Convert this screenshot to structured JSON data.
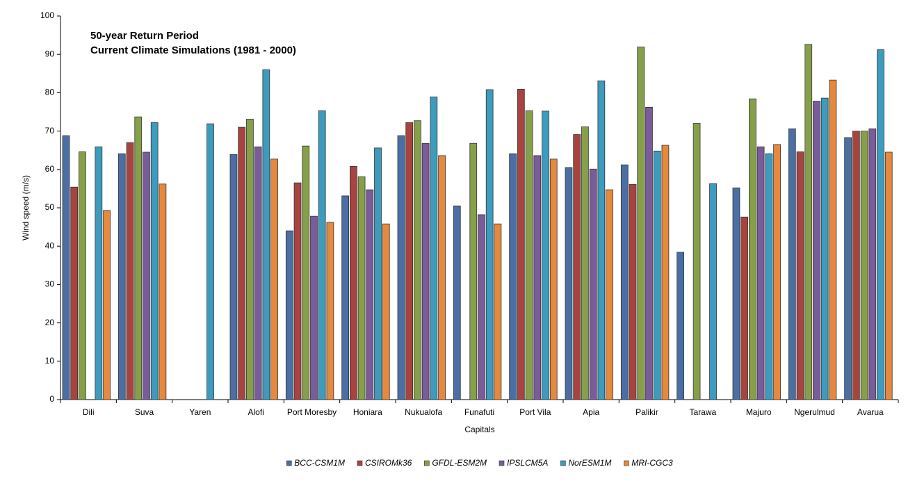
{
  "chart_data": {
    "type": "bar",
    "title": [
      "50-year Return Period",
      "Current Climate Simulations (1981 - 2000)"
    ],
    "x_label": "Capitals",
    "y_label": "Wind speed (m/s)",
    "categories": [
      "Dili",
      "Suva",
      "Yaren",
      "Alofi",
      "Port Moresby",
      "Honiara",
      "Nukualofa",
      "Funafuti",
      "Port Vila",
      "Apia",
      "Palikir",
      "Tarawa",
      "Majuro",
      "Ngerulmud",
      "Avarua"
    ],
    "series": [
      {
        "name": "BCC-CSM1M",
        "color": "#4a6fa5",
        "values": [
          68.8,
          64.1,
          null,
          63.9,
          44.0,
          53.1,
          68.8,
          50.5,
          64.1,
          60.5,
          61.2,
          38.4,
          55.2,
          70.6,
          68.3
        ]
      },
      {
        "name": "CSIROMk36",
        "color": "#a84440",
        "values": [
          55.4,
          67.0,
          null,
          71.0,
          56.5,
          60.8,
          72.2,
          null,
          80.9,
          69.1,
          56.1,
          null,
          47.6,
          64.6,
          70.0
        ]
      },
      {
        "name": "GFDL-ESM2M",
        "color": "#86a04a",
        "values": [
          64.6,
          73.7,
          null,
          73.1,
          66.1,
          58.1,
          72.7,
          66.8,
          75.3,
          71.1,
          91.9,
          72.0,
          78.4,
          92.6,
          70.0
        ]
      },
      {
        "name": "IPSLCM5A",
        "color": "#7a5c9b",
        "values": [
          null,
          64.5,
          null,
          65.9,
          47.8,
          54.7,
          66.8,
          48.2,
          63.6,
          60.1,
          76.2,
          null,
          65.9,
          77.8,
          70.6
        ]
      },
      {
        "name": "NorESM1M",
        "color": "#3d9bbd",
        "values": [
          65.9,
          72.2,
          71.9,
          86.0,
          75.3,
          65.6,
          78.9,
          80.8,
          75.2,
          83.1,
          64.8,
          56.3,
          64.1,
          78.6,
          91.2
        ]
      },
      {
        "name": "MRI-CGC3",
        "color": "#e5893e",
        "values": [
          49.3,
          56.2,
          null,
          62.7,
          46.2,
          45.8,
          63.6,
          45.8,
          62.7,
          54.7,
          66.3,
          null,
          66.5,
          83.3,
          64.5
        ]
      }
    ],
    "ylim": [
      0,
      100
    ],
    "yticks": [
      0,
      10,
      20,
      30,
      40,
      50,
      60,
      70,
      80,
      90,
      100
    ],
    "legend": "bottom"
  }
}
